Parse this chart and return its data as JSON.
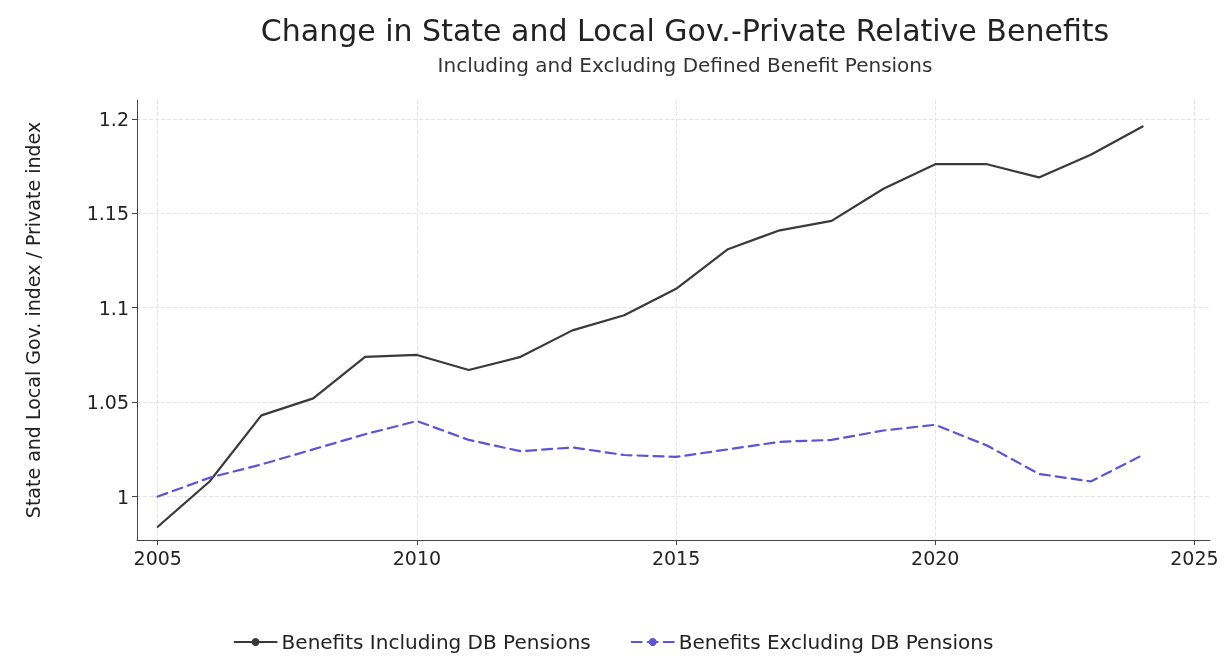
{
  "chart_data": {
    "type": "line",
    "title": "Change in State and Local Gov.-Private Relative Benefits",
    "subtitle": "Including and Excluding Defined Benefit Pensions",
    "ylabel": "State and Local Gov. index / Private index",
    "x": [
      2005,
      2006,
      2007,
      2008,
      2009,
      2010,
      2011,
      2012,
      2013,
      2014,
      2015,
      2016,
      2017,
      2018,
      2019,
      2020,
      2021,
      2022,
      2023,
      2024
    ],
    "series": [
      {
        "name": "Benefits Including DB Pensions",
        "color": "#3a3a3a",
        "line_style": "solid",
        "values": [
          0.984,
          1.008,
          1.043,
          1.052,
          1.074,
          1.075,
          1.067,
          1.074,
          1.088,
          1.096,
          1.11,
          1.131,
          1.141,
          1.146,
          1.163,
          1.176,
          1.176,
          1.169,
          1.181,
          1.196
        ]
      },
      {
        "name": "Benefits Excluding DB Pensions",
        "color": "#5a55d6",
        "line_style": "dashed",
        "values": [
          1.0,
          1.01,
          1.017,
          1.025,
          1.033,
          1.04,
          1.03,
          1.024,
          1.026,
          1.022,
          1.021,
          1.025,
          1.029,
          1.03,
          1.035,
          1.038,
          1.027,
          1.012,
          1.008,
          1.022
        ]
      }
    ],
    "xlim": [
      2004.6,
      2025.3
    ],
    "xticks": [
      2005,
      2010,
      2015,
      2020,
      2025
    ],
    "ylim": [
      0.977,
      1.21
    ],
    "yticks": [
      1,
      1.05,
      1.1,
      1.15,
      1.2
    ],
    "grid": true,
    "legend": "bottom",
    "marker": "none"
  }
}
